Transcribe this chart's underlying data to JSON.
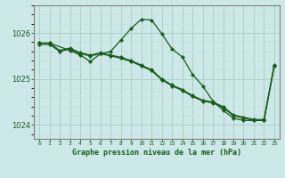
{
  "title": "Graphe pression niveau de la mer (hPa)",
  "bg_color": "#cde8e8",
  "line_color": "#1a5c1a",
  "grid_major_color": "#b0d0c8",
  "grid_minor_color": "#c8e0d8",
  "xlim": [
    -0.5,
    23.5
  ],
  "ylim": [
    1023.7,
    1026.6
  ],
  "yticks": [
    1024,
    1025,
    1026
  ],
  "xticks": [
    0,
    1,
    2,
    3,
    4,
    5,
    6,
    7,
    8,
    9,
    10,
    11,
    12,
    13,
    14,
    15,
    16,
    17,
    18,
    19,
    20,
    21,
    22,
    23
  ],
  "series1_x": [
    0,
    1,
    2,
    3,
    4,
    5,
    6,
    7,
    8,
    9,
    10,
    11,
    12,
    13,
    14,
    15,
    16,
    17,
    18,
    19,
    20,
    21,
    22,
    23
  ],
  "series1_y": [
    1025.75,
    1025.75,
    1025.6,
    1025.65,
    1025.55,
    1025.5,
    1025.55,
    1025.5,
    1025.45,
    1025.38,
    1025.28,
    1025.18,
    1024.98,
    1024.85,
    1024.75,
    1024.62,
    1024.52,
    1024.48,
    1024.38,
    1024.2,
    1024.15,
    1024.1,
    1024.1,
    1025.28
  ],
  "series2_x": [
    0,
    1,
    2,
    3,
    4,
    5,
    6,
    7,
    8,
    9,
    10,
    11,
    12,
    13,
    14,
    15,
    16,
    17,
    18,
    19,
    20,
    21,
    22,
    23
  ],
  "series2_y": [
    1025.78,
    1025.78,
    1025.62,
    1025.67,
    1025.57,
    1025.52,
    1025.57,
    1025.52,
    1025.47,
    1025.4,
    1025.3,
    1025.2,
    1025.0,
    1024.87,
    1024.77,
    1024.64,
    1024.54,
    1024.5,
    1024.4,
    1024.22,
    1024.17,
    1024.12,
    1024.12,
    1025.3
  ],
  "series3_x": [
    0,
    1,
    3,
    4,
    5,
    6,
    7,
    8,
    9,
    10,
    11,
    12,
    13,
    14,
    15,
    16,
    17,
    18,
    19,
    20,
    21,
    22,
    23
  ],
  "series3_y": [
    1025.78,
    1025.78,
    1025.62,
    1025.52,
    1025.38,
    1025.55,
    1025.6,
    1025.85,
    1026.1,
    1026.3,
    1026.28,
    1025.98,
    1025.65,
    1025.48,
    1025.1,
    1024.85,
    1024.52,
    1024.32,
    1024.15,
    1024.1,
    1024.1,
    1024.1,
    1025.28
  ]
}
